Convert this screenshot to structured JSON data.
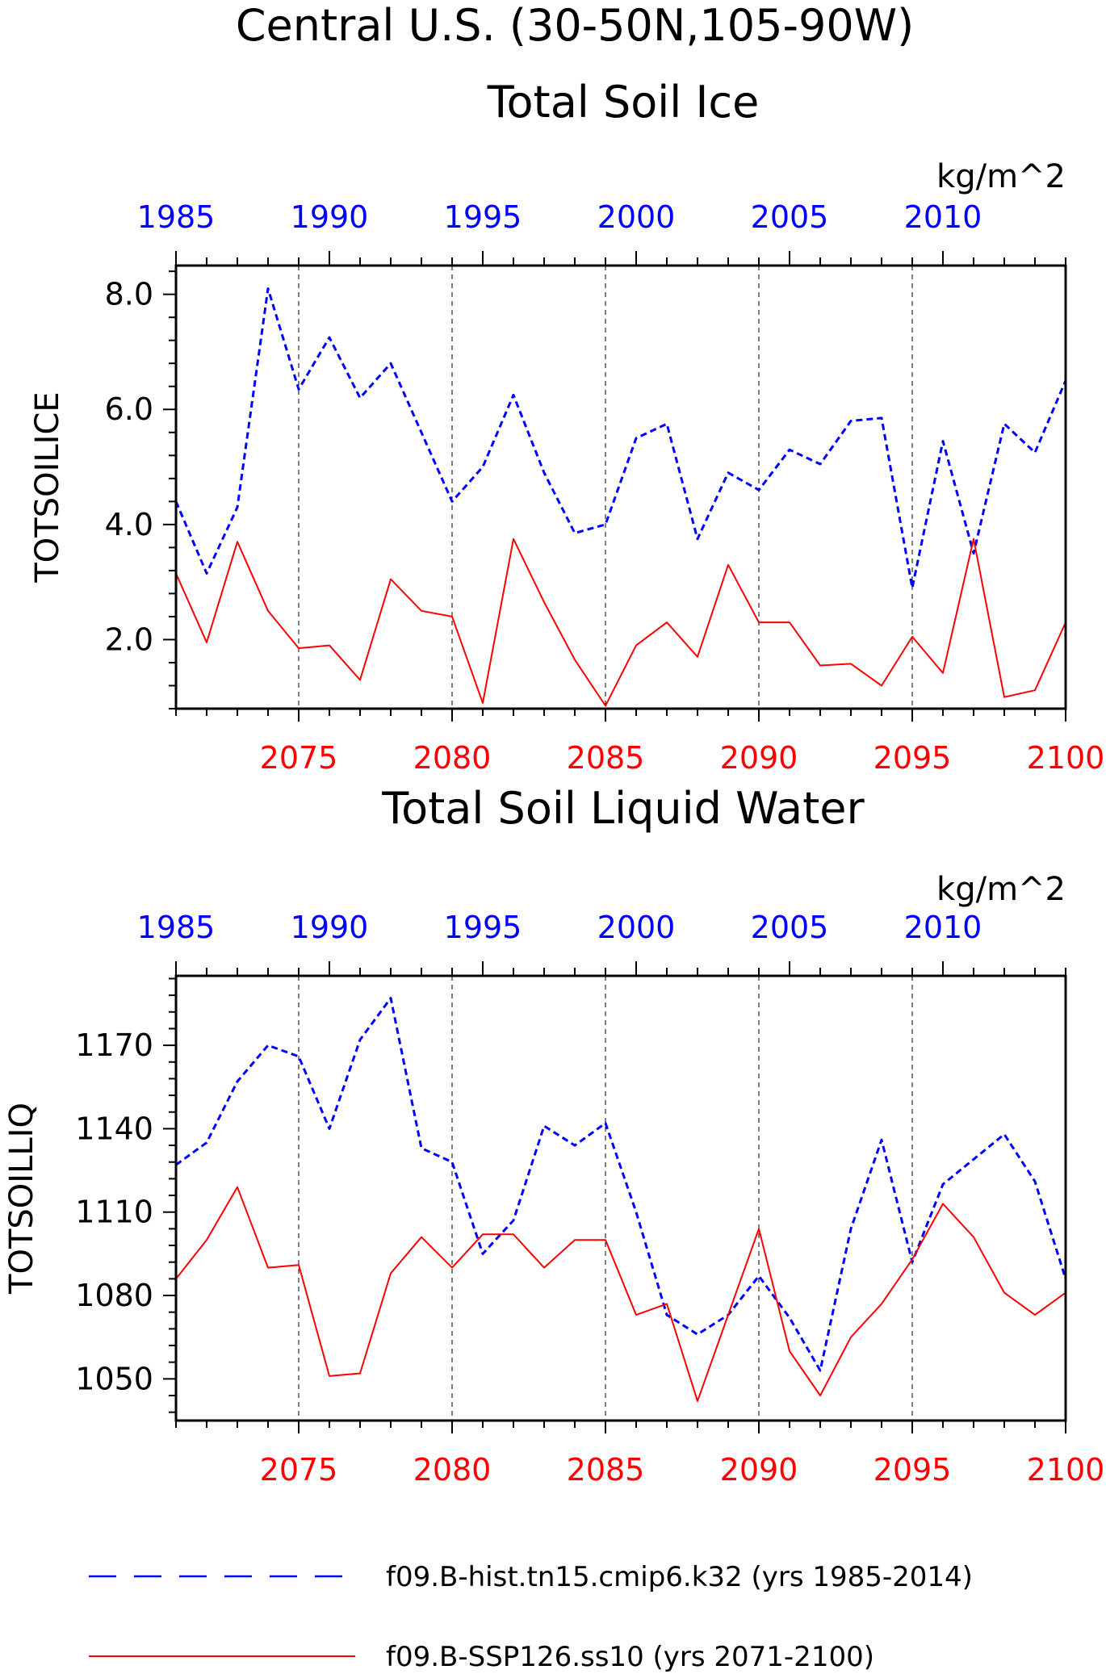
{
  "figure": {
    "title_line1": "Central U.S. (30-50N,105-90W)",
    "legend": [
      {
        "label": "f09.B-hist.tn15.cmip6.k32 (yrs 1985-2014)",
        "color": "#0000ff",
        "style": "dashed"
      },
      {
        "label": "f09.B-SSP126.ss10 (yrs 2071-2100)",
        "color": "#ff0000",
        "style": "solid"
      }
    ]
  },
  "chart_data": [
    {
      "type": "line",
      "title": "Total Soil Ice",
      "units": "kg/m^2",
      "ylabel": "TOTSOILICE",
      "ylim": [
        0.8,
        8.5
      ],
      "yticks": [
        2.0,
        4.0,
        6.0,
        8.0
      ],
      "ytick_labels": [
        "2.0",
        "4.0",
        "6.0",
        "8.0"
      ],
      "bottom_axis": {
        "range": [
          2071,
          2100
        ],
        "ticks": [
          2075,
          2080,
          2085,
          2090,
          2095,
          2100
        ],
        "color": "#ff0000"
      },
      "top_axis": {
        "range": [
          1985,
          2014
        ],
        "ticks": [
          1985,
          1990,
          1995,
          2000,
          2005,
          2010
        ],
        "color": "#0000ff"
      },
      "vgrid": [
        2075,
        2080,
        2085,
        2090,
        2095
      ],
      "series": [
        {
          "name": "f09.B-hist.tn15.cmip6.k32 (yrs 1985-2014)",
          "color": "#0000ff",
          "style": "dashed",
          "x_axis": "top",
          "x": [
            1985,
            1986,
            1987,
            1988,
            1989,
            1990,
            1991,
            1992,
            1993,
            1994,
            1995,
            1996,
            1997,
            1998,
            1999,
            2000,
            2001,
            2002,
            2003,
            2004,
            2005,
            2006,
            2007,
            2008,
            2009,
            2010,
            2011,
            2012,
            2013,
            2014
          ],
          "values": [
            4.4,
            3.15,
            4.3,
            8.1,
            6.35,
            7.25,
            6.2,
            6.8,
            5.6,
            4.4,
            5.0,
            6.25,
            4.9,
            3.85,
            4.0,
            5.5,
            5.75,
            3.75,
            4.9,
            4.6,
            5.3,
            5.05,
            5.8,
            5.85,
            2.9,
            5.45,
            3.5,
            5.75,
            5.25,
            6.5
          ]
        },
        {
          "name": "f09.B-SSP126.ss10 (yrs 2071-2100)",
          "color": "#ff0000",
          "style": "solid",
          "x_axis": "bottom",
          "x": [
            2071,
            2072,
            2073,
            2074,
            2075,
            2076,
            2077,
            2078,
            2079,
            2080,
            2081,
            2082,
            2083,
            2084,
            2085,
            2086,
            2087,
            2088,
            2089,
            2090,
            2091,
            2092,
            2093,
            2094,
            2095,
            2096,
            2097,
            2098,
            2099,
            2100
          ],
          "values": [
            3.15,
            1.95,
            3.7,
            2.5,
            1.85,
            1.9,
            1.3,
            3.05,
            2.5,
            2.4,
            0.9,
            3.75,
            2.65,
            1.65,
            0.85,
            1.9,
            2.3,
            1.7,
            3.3,
            2.3,
            2.3,
            1.55,
            1.58,
            1.2,
            2.05,
            1.42,
            3.75,
            1.0,
            1.12,
            2.3
          ]
        }
      ]
    },
    {
      "type": "line",
      "title": "Total Soil Liquid Water",
      "units": "kg/m^2",
      "ylabel": "TOTSOILLIQ",
      "ylim": [
        1035,
        1195
      ],
      "yticks": [
        1050,
        1080,
        1110,
        1140,
        1170
      ],
      "ytick_labels": [
        "1050",
        "1080",
        "1110",
        "1140",
        "1170"
      ],
      "bottom_axis": {
        "range": [
          2071,
          2100
        ],
        "ticks": [
          2075,
          2080,
          2085,
          2090,
          2095,
          2100
        ],
        "color": "#ff0000"
      },
      "top_axis": {
        "range": [
          1985,
          2014
        ],
        "ticks": [
          1985,
          1990,
          1995,
          2000,
          2005,
          2010
        ],
        "color": "#0000ff"
      },
      "vgrid": [
        2075,
        2080,
        2085,
        2090,
        2095
      ],
      "series": [
        {
          "name": "f09.B-hist.tn15.cmip6.k32 (yrs 1985-2014)",
          "color": "#0000ff",
          "style": "dashed",
          "x_axis": "top",
          "x": [
            1985,
            1986,
            1987,
            1988,
            1989,
            1990,
            1991,
            1992,
            1993,
            1994,
            1995,
            1996,
            1997,
            1998,
            1999,
            2000,
            2001,
            2002,
            2003,
            2004,
            2005,
            2006,
            2007,
            2008,
            2009,
            2010,
            2011,
            2012,
            2013,
            2014
          ],
          "values": [
            1127,
            1135,
            1157,
            1170,
            1166,
            1140,
            1172,
            1187,
            1133,
            1128,
            1095,
            1107,
            1141,
            1134,
            1142,
            1110,
            1073,
            1066,
            1073,
            1087,
            1072,
            1053,
            1104,
            1136,
            1092,
            1120,
            1129,
            1138,
            1121,
            1086
          ]
        },
        {
          "name": "f09.B-SSP126.ss10 (yrs 2071-2100)",
          "color": "#ff0000",
          "style": "solid",
          "x_axis": "bottom",
          "x": [
            2071,
            2072,
            2073,
            2074,
            2075,
            2076,
            2077,
            2078,
            2079,
            2080,
            2081,
            2082,
            2083,
            2084,
            2085,
            2086,
            2087,
            2088,
            2089,
            2090,
            2091,
            2092,
            2093,
            2094,
            2095,
            2096,
            2097,
            2098,
            2099,
            2100
          ],
          "values": [
            1086,
            1100,
            1119,
            1090,
            1091,
            1051,
            1052,
            1088,
            1101,
            1090,
            1102,
            1102,
            1090,
            1100,
            1100,
            1073,
            1077,
            1042,
            1073,
            1104,
            1060,
            1044,
            1065,
            1077,
            1093,
            1113,
            1101,
            1081,
            1073,
            1081
          ]
        }
      ]
    }
  ]
}
